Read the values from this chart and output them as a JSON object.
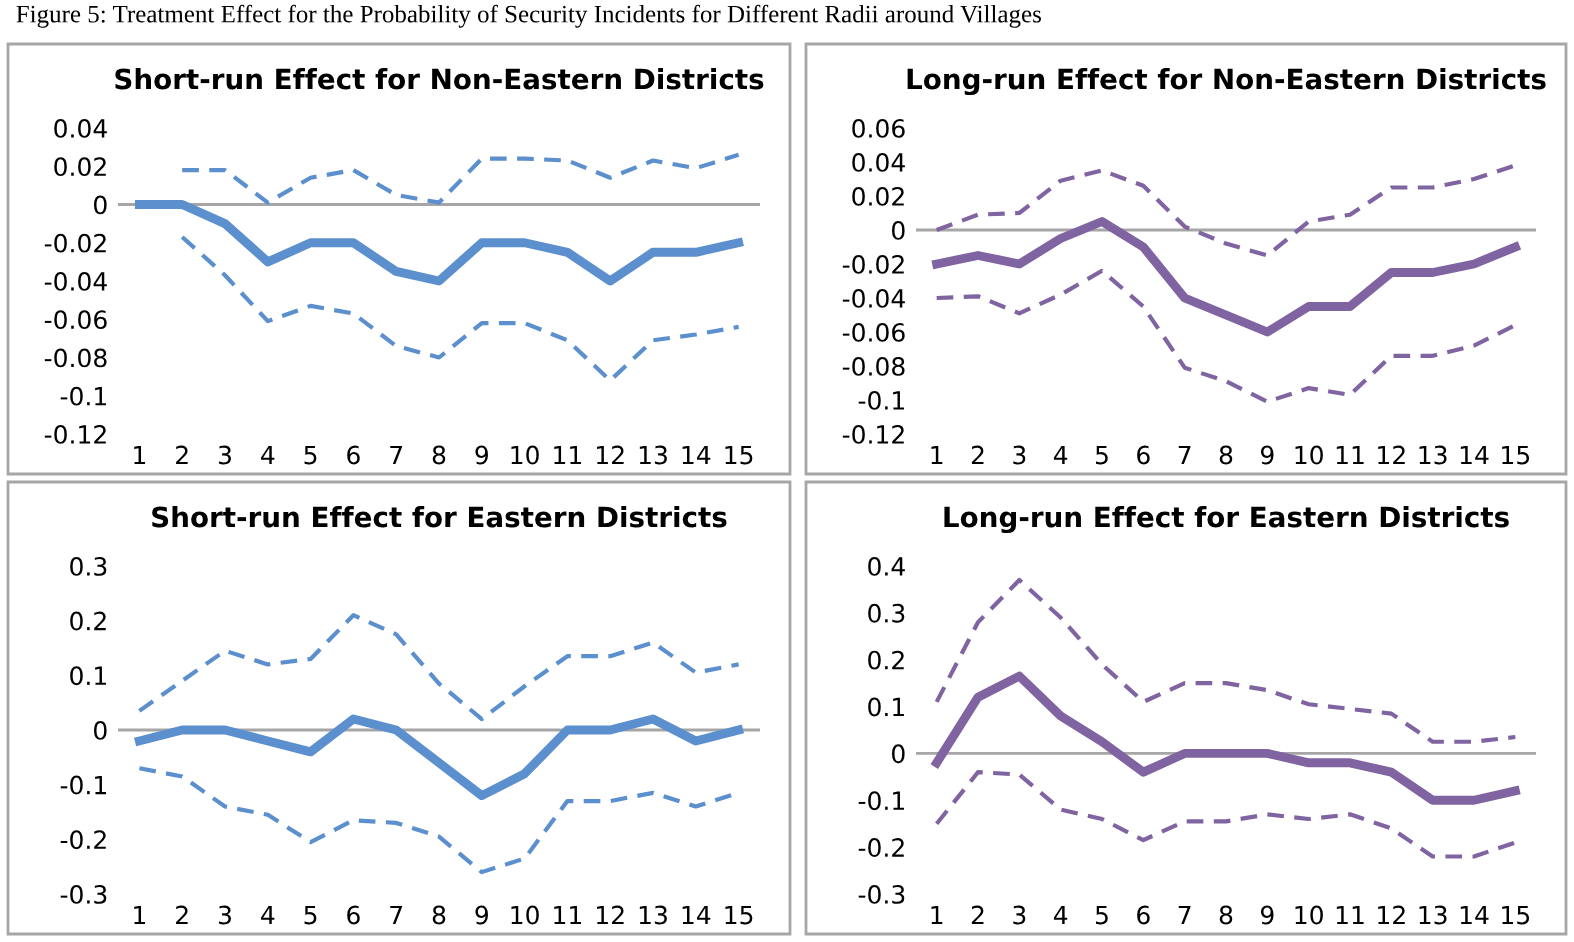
{
  "chart_data": [
    {
      "type": "line",
      "title": "Short-run Effect for Non-Eastern Districts",
      "annotations": [
        "Figure 5: Treatment Effect for the Probability of Security Incidents for Different Radii around Villages"
      ],
      "categories": [
        "1",
        "2",
        "3",
        "4",
        "5",
        "6",
        "7",
        "8",
        "9",
        "10",
        "11",
        "12",
        "13",
        "14",
        "15"
      ],
      "ylim": [
        -0.12,
        0.04
      ],
      "ref_lines": [
        {
          "axis": "y",
          "value": 0,
          "color": "#a6a6a6"
        }
      ],
      "yticks": [
        -0.12,
        -0.1,
        -0.08,
        -0.06,
        -0.04,
        -0.02,
        0,
        0.02,
        0.04
      ],
      "grid": false,
      "legend": false,
      "marker": "none",
      "series": [
        {
          "color": "#5b8fcd",
          "line_style": "dashed",
          "values": [
            null,
            0.018,
            0.018,
            0.001,
            0.014,
            0.018,
            0.005,
            0.001,
            0.024,
            0.024,
            0.023,
            0.014,
            0.023,
            0.019,
            0.026
          ]
        },
        {
          "color": "#5b8fcd",
          "line_style": "solid",
          "values": [
            0,
            0,
            -0.01,
            -0.03,
            -0.02,
            -0.02,
            -0.035,
            -0.04,
            -0.02,
            -0.02,
            -0.025,
            -0.04,
            -0.025,
            -0.025,
            -0.02
          ]
        },
        {
          "color": "#5b8fcd",
          "line_style": "dashed",
          "values": [
            null,
            -0.017,
            -0.037,
            -0.061,
            -0.053,
            -0.057,
            -0.074,
            -0.08,
            -0.062,
            -0.062,
            -0.071,
            -0.092,
            -0.071,
            -0.068,
            -0.064
          ]
        }
      ]
    },
    {
      "type": "line",
      "title": "Long-run Effect for Non-Eastern Districts",
      "categories": [
        "1",
        "2",
        "3",
        "4",
        "5",
        "6",
        "7",
        "8",
        "9",
        "10",
        "11",
        "12",
        "13",
        "14",
        "15"
      ],
      "ylim": [
        -0.12,
        0.06
      ],
      "ref_lines": [
        {
          "axis": "y",
          "value": 0,
          "color": "#a6a6a6"
        }
      ],
      "yticks": [
        -0.12,
        -0.1,
        -0.08,
        -0.06,
        -0.04,
        -0.02,
        0,
        0.02,
        0.04,
        0.06
      ],
      "grid": false,
      "legend": false,
      "marker": "none",
      "series": [
        {
          "color": "#8064a2",
          "line_style": "dashed",
          "values": [
            0,
            0.009,
            0.01,
            0.029,
            0.035,
            0.026,
            0.002,
            -0.008,
            -0.015,
            0.005,
            0.009,
            0.025,
            0.025,
            0.03,
            0.038
          ]
        },
        {
          "color": "#8064a2",
          "line_style": "solid",
          "values": [
            -0.02,
            -0.015,
            -0.02,
            -0.005,
            0.005,
            -0.01,
            -0.04,
            -0.05,
            -0.06,
            -0.045,
            -0.045,
            -0.025,
            -0.025,
            -0.02,
            -0.01
          ]
        },
        {
          "color": "#8064a2",
          "line_style": "dashed",
          "values": [
            -0.04,
            -0.039,
            -0.049,
            -0.038,
            -0.024,
            -0.045,
            -0.081,
            -0.089,
            -0.101,
            -0.093,
            -0.097,
            -0.074,
            -0.074,
            -0.068,
            -0.056
          ]
        }
      ]
    },
    {
      "type": "line",
      "title": "Short-run Effect for Eastern Districts",
      "categories": [
        "1",
        "2",
        "3",
        "4",
        "5",
        "6",
        "7",
        "8",
        "9",
        "10",
        "11",
        "12",
        "13",
        "14",
        "15"
      ],
      "ylim": [
        -0.3,
        0.3
      ],
      "ref_lines": [
        {
          "axis": "y",
          "value": 0,
          "color": "#a6a6a6"
        }
      ],
      "yticks": [
        -0.3,
        -0.2,
        -0.1,
        0,
        0.1,
        0.2,
        0.3
      ],
      "grid": false,
      "legend": false,
      "marker": "none",
      "series": [
        {
          "color": "#5b8fcd",
          "line_style": "dashed",
          "values": [
            0.035,
            0.09,
            0.145,
            0.12,
            0.13,
            0.21,
            0.175,
            0.085,
            0.02,
            0.08,
            0.135,
            0.135,
            0.16,
            0.105,
            0.12
          ]
        },
        {
          "color": "#5b8fcd",
          "line_style": "solid",
          "values": [
            -0.02,
            0,
            0,
            -0.02,
            -0.04,
            0.02,
            0,
            -0.06,
            -0.12,
            -0.08,
            0,
            0,
            0.02,
            -0.02,
            0
          ]
        },
        {
          "color": "#5b8fcd",
          "line_style": "dashed",
          "values": [
            -0.07,
            -0.085,
            -0.14,
            -0.155,
            -0.205,
            -0.165,
            -0.17,
            -0.195,
            -0.26,
            -0.235,
            -0.13,
            -0.13,
            -0.115,
            -0.14,
            -0.115
          ]
        }
      ]
    },
    {
      "type": "line",
      "title": "Long-run Effect for Eastern Districts",
      "categories": [
        "1",
        "2",
        "3",
        "4",
        "5",
        "6",
        "7",
        "8",
        "9",
        "10",
        "11",
        "12",
        "13",
        "14",
        "15"
      ],
      "ylim": [
        -0.3,
        0.4
      ],
      "ref_lines": [
        {
          "axis": "y",
          "value": 0,
          "color": "#a6a6a6"
        }
      ],
      "yticks": [
        -0.3,
        -0.2,
        -0.1,
        0,
        0.1,
        0.2,
        0.3,
        0.4
      ],
      "grid": false,
      "legend": false,
      "marker": "none",
      "series": [
        {
          "color": "#8064a2",
          "line_style": "dashed",
          "values": [
            0.11,
            0.28,
            0.37,
            0.29,
            0.19,
            0.11,
            0.15,
            0.15,
            0.135,
            0.105,
            0.095,
            0.085,
            0.025,
            0.025,
            0.035
          ]
        },
        {
          "color": "#8064a2",
          "line_style": "solid",
          "values": [
            -0.02,
            0.12,
            0.165,
            0.08,
            0.025,
            -0.04,
            0,
            0,
            0,
            -0.02,
            -0.02,
            -0.04,
            -0.1,
            -0.1,
            -0.08
          ]
        },
        {
          "color": "#8064a2",
          "line_style": "dashed",
          "values": [
            -0.15,
            -0.04,
            -0.045,
            -0.12,
            -0.14,
            -0.185,
            -0.145,
            -0.145,
            -0.13,
            -0.14,
            -0.13,
            -0.16,
            -0.22,
            -0.22,
            -0.19
          ]
        }
      ]
    }
  ]
}
